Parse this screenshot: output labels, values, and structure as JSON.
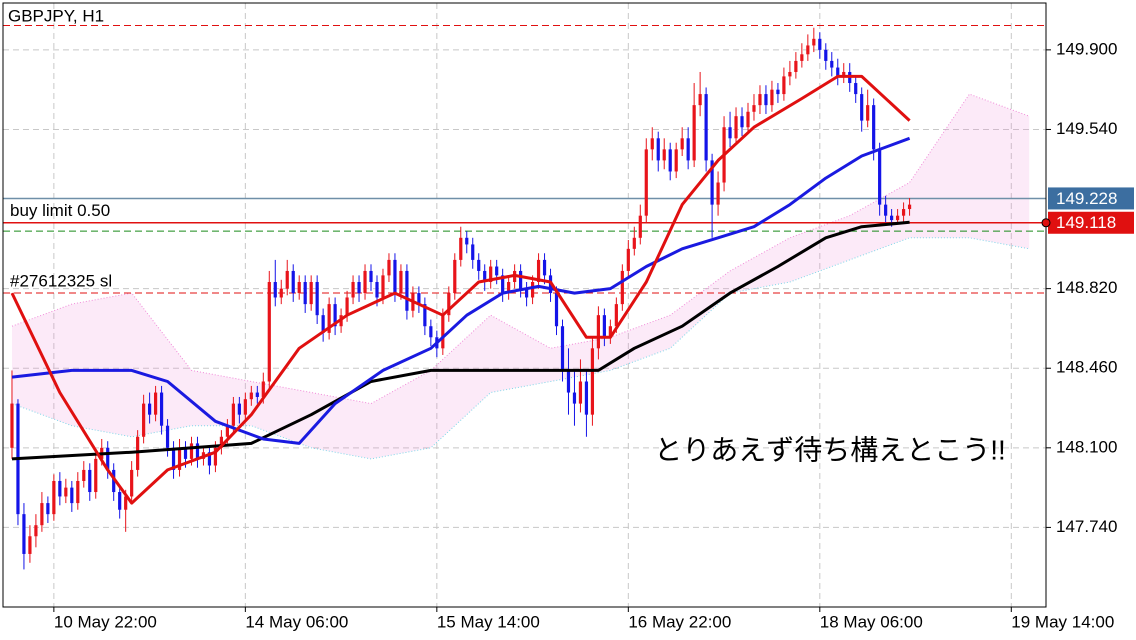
{
  "chart_data": {
    "type": "candlestick",
    "title": "GBPJPY, H1",
    "annotation": "とりあえず待ち構えとこう!!",
    "colors": {
      "up": "#e8141b",
      "down": "#1414e8"
    },
    "open": [
      148.1,
      148.3,
      147.8,
      147.62,
      147.7,
      147.75,
      147.85,
      147.8,
      147.95,
      147.88,
      147.92,
      147.85,
      147.95,
      148.0,
      147.9,
      148.05,
      148.1,
      148.0,
      147.9,
      147.82,
      147.88,
      148.0,
      148.15,
      148.3,
      148.25,
      148.35,
      148.2,
      148.1,
      148.0,
      148.1,
      148.05,
      148.12,
      148.05,
      148.08,
      148.02,
      148.1,
      148.15,
      148.2,
      148.3,
      148.25,
      148.32,
      148.35,
      148.33,
      148.4,
      148.85,
      148.78,
      148.82,
      148.9,
      148.8,
      148.85,
      148.75,
      148.85,
      148.7,
      148.62,
      148.75,
      148.65,
      148.7,
      148.78,
      148.85,
      148.8,
      148.9,
      148.85,
      148.78,
      148.88,
      148.95,
      148.8,
      148.9,
      148.72,
      148.8,
      148.75,
      148.65,
      148.6,
      148.55,
      148.7,
      148.8,
      148.95,
      149.05,
      149.02,
      148.95,
      148.9,
      148.85,
      148.92,
      148.88,
      148.8,
      148.85,
      148.9,
      148.82,
      148.78,
      148.85,
      148.95,
      148.88,
      148.8,
      148.65,
      148.45,
      148.35,
      148.3,
      148.4,
      148.25,
      148.55,
      148.7,
      148.6,
      148.65,
      148.75,
      148.9,
      149.0,
      149.05,
      149.15,
      149.45,
      149.5,
      149.4,
      149.45,
      149.35,
      149.45,
      149.5,
      149.4,
      149.65,
      149.7,
      149.4,
      149.2,
      149.3,
      149.55,
      149.5,
      149.6,
      149.55,
      149.62,
      149.65,
      149.7,
      149.65,
      149.72,
      149.7,
      149.78,
      149.8,
      149.85,
      149.88,
      149.92,
      149.95,
      149.9,
      149.85,
      149.82,
      149.78,
      149.8,
      149.75,
      149.7,
      149.58,
      149.65,
      149.45,
      149.2,
      149.15,
      149.13,
      149.15,
      149.18
    ],
    "high": [
      148.45,
      148.32,
      147.85,
      147.75,
      147.8,
      147.9,
      147.88,
      147.98,
      147.99,
      147.96,
      147.95,
      147.99,
      148.04,
      148.03,
      148.08,
      148.14,
      148.13,
      148.03,
      147.93,
      147.91,
      148.04,
      148.18,
      148.34,
      148.35,
      148.38,
      148.38,
      148.23,
      148.13,
      148.14,
      148.13,
      148.15,
      148.15,
      148.11,
      148.11,
      148.13,
      148.18,
      148.23,
      148.33,
      148.33,
      148.35,
      148.38,
      148.38,
      148.44,
      148.9,
      148.95,
      148.86,
      148.95,
      148.93,
      148.88,
      148.88,
      148.88,
      148.88,
      148.73,
      148.78,
      148.78,
      148.73,
      148.81,
      148.88,
      148.88,
      148.93,
      148.93,
      148.88,
      148.91,
      148.98,
      148.98,
      148.93,
      148.93,
      148.83,
      148.83,
      148.78,
      148.68,
      148.63,
      148.73,
      148.83,
      148.98,
      149.1,
      149.08,
      149.05,
      148.98,
      148.93,
      148.95,
      148.95,
      148.91,
      148.88,
      148.93,
      148.93,
      148.85,
      148.88,
      148.98,
      148.98,
      148.91,
      148.83,
      148.68,
      148.55,
      148.45,
      148.5,
      148.45,
      148.6,
      148.74,
      148.73,
      148.68,
      148.78,
      148.93,
      149.04,
      149.1,
      149.2,
      149.5,
      149.55,
      149.53,
      149.5,
      149.48,
      149.48,
      149.55,
      149.55,
      149.75,
      149.8,
      149.73,
      149.43,
      149.35,
      149.6,
      149.62,
      149.64,
      149.64,
      149.66,
      149.7,
      149.74,
      149.74,
      149.76,
      149.75,
      149.82,
      149.85,
      149.89,
      149.93,
      149.97,
      150.0,
      149.98,
      149.93,
      149.89,
      149.86,
      149.84,
      149.84,
      149.78,
      149.73,
      149.72,
      149.68,
      149.48,
      149.24,
      149.18,
      149.18,
      149.21,
      149.23
    ],
    "low": [
      148.05,
      147.75,
      147.55,
      147.58,
      147.65,
      147.72,
      147.76,
      147.77,
      147.84,
      147.85,
      147.81,
      147.82,
      147.92,
      147.86,
      147.87,
      148.02,
      147.96,
      147.86,
      147.78,
      147.72,
      147.85,
      147.97,
      148.12,
      148.21,
      148.22,
      148.16,
      148.06,
      147.96,
      147.97,
      148.01,
      148.02,
      148.01,
      148.02,
      147.98,
      147.99,
      148.07,
      148.12,
      148.17,
      148.21,
      148.22,
      148.29,
      148.3,
      148.3,
      148.37,
      148.74,
      148.75,
      148.79,
      148.76,
      148.77,
      148.71,
      148.72,
      148.66,
      148.58,
      148.59,
      148.61,
      148.62,
      148.67,
      148.75,
      148.76,
      148.77,
      148.81,
      148.74,
      148.75,
      148.85,
      148.76,
      148.77,
      148.68,
      148.69,
      148.71,
      148.61,
      148.56,
      148.51,
      148.52,
      148.67,
      148.77,
      148.92,
      148.98,
      148.91,
      148.86,
      148.81,
      148.82,
      148.84,
      148.76,
      148.77,
      148.82,
      148.78,
      148.74,
      148.75,
      148.82,
      148.84,
      148.76,
      148.61,
      148.4,
      148.25,
      148.2,
      148.26,
      148.15,
      148.2,
      148.5,
      148.56,
      148.57,
      148.62,
      148.72,
      148.87,
      148.97,
      149.02,
      149.12,
      149.4,
      149.35,
      149.36,
      149.31,
      149.32,
      149.42,
      149.36,
      149.37,
      149.6,
      149.35,
      149.05,
      149.15,
      149.26,
      149.46,
      149.47,
      149.51,
      149.52,
      149.58,
      149.61,
      149.61,
      149.62,
      149.66,
      149.67,
      149.74,
      149.77,
      149.82,
      149.85,
      149.89,
      149.86,
      149.81,
      149.78,
      149.74,
      149.75,
      149.71,
      149.66,
      149.53,
      149.55,
      149.4,
      149.15,
      149.12,
      149.1,
      149.11,
      149.12,
      149.15
    ],
    "close": [
      148.3,
      147.8,
      147.62,
      147.7,
      147.75,
      147.85,
      147.8,
      147.95,
      147.88,
      147.92,
      147.85,
      147.95,
      148.0,
      147.9,
      148.05,
      148.1,
      148.0,
      147.9,
      147.82,
      147.88,
      148.0,
      148.15,
      148.3,
      148.25,
      148.35,
      148.2,
      148.1,
      148.0,
      148.1,
      148.05,
      148.12,
      148.05,
      148.08,
      148.02,
      148.1,
      148.15,
      148.2,
      148.3,
      148.25,
      148.32,
      148.35,
      148.33,
      148.4,
      148.85,
      148.78,
      148.82,
      148.9,
      148.8,
      148.85,
      148.75,
      148.85,
      148.7,
      148.62,
      148.75,
      148.65,
      148.7,
      148.78,
      148.85,
      148.8,
      148.9,
      148.85,
      148.78,
      148.88,
      148.95,
      148.8,
      148.9,
      148.72,
      148.8,
      148.75,
      148.65,
      148.6,
      148.55,
      148.7,
      148.8,
      148.95,
      149.05,
      149.02,
      148.95,
      148.9,
      148.85,
      148.92,
      148.88,
      148.8,
      148.85,
      148.9,
      148.82,
      148.78,
      148.85,
      148.95,
      148.88,
      148.8,
      148.65,
      148.45,
      148.35,
      148.3,
      148.4,
      148.25,
      148.55,
      148.7,
      148.6,
      148.65,
      148.75,
      148.9,
      149.0,
      149.05,
      149.15,
      149.45,
      149.5,
      149.4,
      149.45,
      149.35,
      149.45,
      149.5,
      149.4,
      149.65,
      149.7,
      149.4,
      149.2,
      149.3,
      149.55,
      149.5,
      149.6,
      149.55,
      149.62,
      149.65,
      149.7,
      149.65,
      149.72,
      149.7,
      149.78,
      149.8,
      149.85,
      149.88,
      149.92,
      149.95,
      149.9,
      149.85,
      149.82,
      149.78,
      149.8,
      149.75,
      149.7,
      149.58,
      149.65,
      149.45,
      149.2,
      149.15,
      149.13,
      149.15,
      149.18,
      149.2
    ],
    "cloud": {
      "color": "#f08ad8",
      "x": [
        0,
        10,
        20,
        30,
        40,
        50,
        60,
        70,
        80,
        90,
        100,
        110,
        120,
        130,
        140,
        150,
        160,
        170
      ],
      "upper": [
        148.65,
        148.75,
        148.8,
        148.45,
        148.4,
        148.35,
        148.3,
        148.45,
        148.7,
        148.55,
        148.6,
        148.7,
        148.9,
        149.05,
        149.15,
        149.3,
        149.7,
        149.6
      ],
      "lower": [
        148.3,
        148.2,
        148.15,
        148.2,
        148.2,
        148.1,
        148.05,
        148.1,
        148.35,
        148.4,
        148.45,
        148.55,
        148.8,
        148.85,
        148.95,
        149.05,
        149.05,
        149.0
      ]
    },
    "lines": [
      {
        "color": "#000000",
        "x": [
          0,
          20,
          40,
          50,
          60,
          70,
          80,
          90,
          98,
          104,
          112,
          120,
          128,
          136,
          142,
          150
        ],
        "values": [
          148.05,
          148.08,
          148.12,
          148.25,
          148.4,
          148.45,
          148.45,
          148.45,
          148.45,
          148.55,
          148.65,
          148.8,
          148.92,
          149.05,
          149.1,
          149.12
        ]
      },
      {
        "color": "#1a1ae0",
        "x": [
          0,
          10,
          20,
          26,
          34,
          42,
          48,
          54,
          62,
          70,
          76,
          82,
          88,
          94,
          100,
          106,
          112,
          118,
          124,
          130,
          136,
          142,
          150
        ],
        "values": [
          148.42,
          148.45,
          148.45,
          148.4,
          148.22,
          148.14,
          148.12,
          148.3,
          148.45,
          148.55,
          148.7,
          148.8,
          148.83,
          148.8,
          148.82,
          148.92,
          149.0,
          149.05,
          149.1,
          149.2,
          149.32,
          149.42,
          149.5
        ]
      },
      {
        "color": "#e01010",
        "x": [
          0,
          8,
          16,
          20,
          26,
          34,
          40,
          48,
          56,
          64,
          72,
          78,
          84,
          90,
          96,
          100,
          106,
          112,
          118,
          124,
          132,
          138,
          142,
          150
        ],
        "values": [
          148.8,
          148.35,
          148.0,
          147.85,
          148.0,
          148.08,
          148.25,
          148.55,
          148.7,
          148.8,
          148.7,
          148.85,
          148.88,
          148.85,
          148.6,
          148.6,
          148.85,
          149.2,
          149.4,
          149.55,
          149.68,
          149.78,
          149.78,
          149.58
        ]
      }
    ],
    "levels": [
      {
        "price": 150.01,
        "color": "#e01010",
        "style": "dash"
      },
      {
        "price": 149.228,
        "color": "#6f8fa8",
        "style": "solid",
        "tag": "#3c6ea0"
      },
      {
        "price": 149.118,
        "color": "#e01010",
        "style": "solid",
        "tag": "#e01010",
        "label": "buy limit 0.50"
      },
      {
        "price": 149.08,
        "color": "#1a8a1a",
        "style": "dash"
      },
      {
        "price": 148.8,
        "color": "#e01010",
        "style": "dash",
        "label": "#27612325 sl"
      }
    ],
    "xlim": [
      -1.5,
      172.8
    ],
    "xticks": [
      {
        "value": 7,
        "label": "10 May 22:00"
      },
      {
        "value": 39,
        "label": "14 May 06:00"
      },
      {
        "value": 71,
        "label": "15 May 14:00"
      },
      {
        "value": 103,
        "label": "16 May 22:00"
      },
      {
        "value": 135,
        "label": "18 May 06:00"
      },
      {
        "value": 167,
        "label": "19 May 14:00"
      }
    ],
    "ylim": [
      147.38,
      150.112
    ],
    "yticks": [
      {
        "value": 149.9,
        "label": "149.900"
      },
      {
        "value": 149.54,
        "label": "149.540"
      },
      {
        "value": 148.82,
        "label": "148.820"
      },
      {
        "value": 148.46,
        "label": "148.460"
      },
      {
        "value": 148.1,
        "label": "148.100"
      },
      {
        "value": 147.74,
        "label": "147.740"
      }
    ],
    "grid": true
  }
}
